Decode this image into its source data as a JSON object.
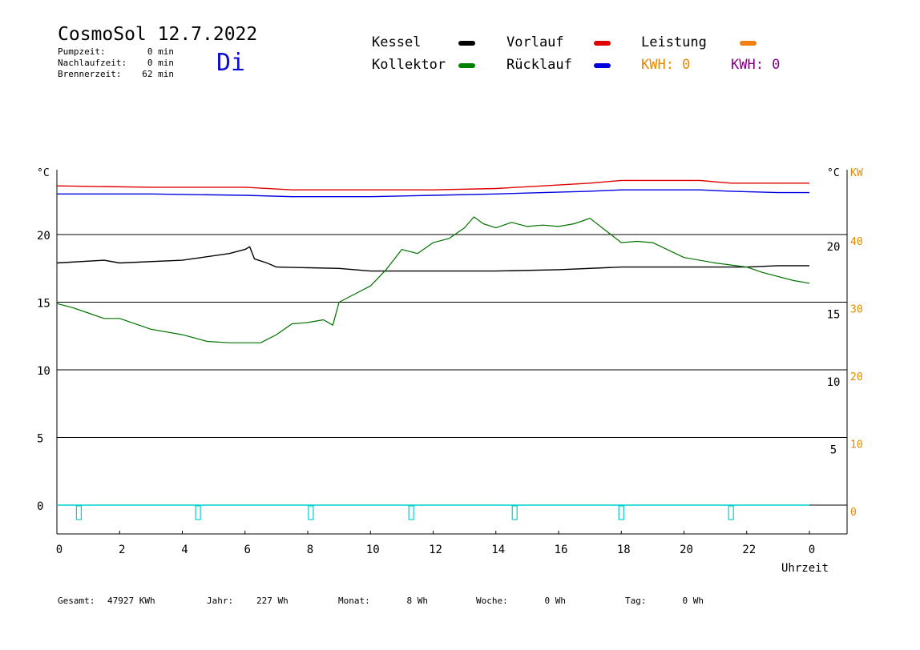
{
  "header": {
    "title": "CosmoSol 12.7.2022",
    "day": "Di",
    "stats": [
      {
        "label": "Pumpzeit:",
        "value": "0 min"
      },
      {
        "label": "Nachlaufzeit:",
        "value": "0 min"
      },
      {
        "label": "Brennerzeit:",
        "value": "62 min"
      }
    ]
  },
  "legend": {
    "items": [
      {
        "label": "Kessel",
        "color": "#000000"
      },
      {
        "label": "Vorlauf",
        "color": "#e00000"
      },
      {
        "label": "Leistung",
        "color": "#f08010"
      },
      {
        "label": "Kollektor",
        "color": "#008000"
      },
      {
        "label": "Rücklauf",
        "color": "#0000e0"
      }
    ],
    "kwh": [
      {
        "label": "KWH: 0",
        "color": "#e08a00"
      },
      {
        "label": "KWH: 0",
        "color": "#800080"
      }
    ]
  },
  "axes": {
    "left_unit": "°C",
    "right_unit": "°C",
    "right_kw_unit": "KW",
    "xlabel": "Uhrzeit"
  },
  "footer": {
    "items": [
      {
        "label": "Gesamt:",
        "value": "47927 KWh"
      },
      {
        "label": "Jahr:",
        "value": "227 Wh"
      },
      {
        "label": "Monat:",
        "value": "8 Wh"
      },
      {
        "label": "Woche:",
        "value": "0 Wh"
      },
      {
        "label": "Tag:",
        "value": "0 Wh"
      }
    ]
  },
  "colors": {
    "kessel": "#000000",
    "vorlauf": "#e00000",
    "ruecklauf": "#0000e0",
    "kollektor": "#007000",
    "pump": "#00d0d0",
    "kw_axis": "#e08a00"
  },
  "chart_data": {
    "type": "line",
    "xlabel": "Uhrzeit",
    "ylabel": "°C",
    "xlim": [
      0,
      24
    ],
    "ylim": [
      -2,
      25
    ],
    "x_ticks": [
      "0",
      "2",
      "4",
      "6",
      "8",
      "10",
      "12",
      "14",
      "16",
      "18",
      "20",
      "22",
      "0"
    ],
    "y_ticks_left": [
      "0",
      "5",
      "10",
      "15",
      "20"
    ],
    "y_ticks_right": [
      "5",
      "10",
      "15",
      "20"
    ],
    "y_ticks_kw": [
      "0",
      "10",
      "20",
      "30",
      "40"
    ],
    "kw_range": [
      0,
      40
    ],
    "grid": true,
    "series": [
      {
        "name": "Vorlauf",
        "key": "vorlauf",
        "x": [
          0,
          3,
          6,
          7.5,
          10,
          12,
          14,
          15.5,
          17,
          18,
          19,
          20.5,
          21.5,
          23,
          24
        ],
        "y": [
          23.6,
          23.5,
          23.5,
          23.3,
          23.3,
          23.3,
          23.4,
          23.6,
          23.8,
          24.0,
          24.0,
          24.0,
          23.8,
          23.8,
          23.8
        ]
      },
      {
        "name": "Rücklauf",
        "key": "ruecklauf",
        "x": [
          0,
          3,
          6,
          7.5,
          10,
          12,
          14,
          15.5,
          17,
          18,
          19,
          20.5,
          21.5,
          23,
          24
        ],
        "y": [
          23.0,
          23.0,
          22.9,
          22.8,
          22.8,
          22.9,
          23.0,
          23.1,
          23.2,
          23.3,
          23.3,
          23.3,
          23.2,
          23.1,
          23.1
        ]
      },
      {
        "name": "Kessel",
        "key": "kessel",
        "x": [
          0,
          1.5,
          2,
          4,
          5.5,
          6.0,
          6.15,
          6.3,
          6.7,
          7,
          9,
          10,
          12,
          14,
          16,
          18,
          20,
          22,
          23,
          24
        ],
        "y": [
          17.9,
          18.1,
          17.9,
          18.1,
          18.6,
          18.9,
          19.1,
          18.2,
          17.9,
          17.6,
          17.5,
          17.3,
          17.3,
          17.3,
          17.4,
          17.6,
          17.6,
          17.6,
          17.7,
          17.7
        ]
      },
      {
        "name": "Kollektor",
        "key": "kollektor",
        "x": [
          0,
          0.5,
          1,
          1.5,
          2,
          3,
          4,
          4.8,
          5.5,
          6,
          6.5,
          7,
          7.5,
          8,
          8.5,
          8.8,
          9,
          9.5,
          10,
          10.5,
          11,
          11.5,
          12,
          12.5,
          13,
          13.3,
          13.6,
          14,
          14.5,
          15,
          15.5,
          16,
          16.5,
          17,
          17.5,
          18,
          18.5,
          19,
          20,
          21,
          22,
          22.5,
          23,
          23.5,
          24
        ],
        "y": [
          14.9,
          14.6,
          14.2,
          13.8,
          13.8,
          13.0,
          12.6,
          12.1,
          12.0,
          12.0,
          12.0,
          12.6,
          13.4,
          13.5,
          13.7,
          13.3,
          15.0,
          15.6,
          16.2,
          17.4,
          18.9,
          18.6,
          19.4,
          19.7,
          20.5,
          21.3,
          20.8,
          20.5,
          20.9,
          20.6,
          20.7,
          20.6,
          20.8,
          21.2,
          20.3,
          19.4,
          19.5,
          19.4,
          18.3,
          17.9,
          17.6,
          17.2,
          16.9,
          16.6,
          16.4
        ]
      },
      {
        "name": "Pumpe",
        "key": "pump",
        "x": [
          0,
          24
        ],
        "y": [
          0,
          0
        ]
      }
    ]
  }
}
